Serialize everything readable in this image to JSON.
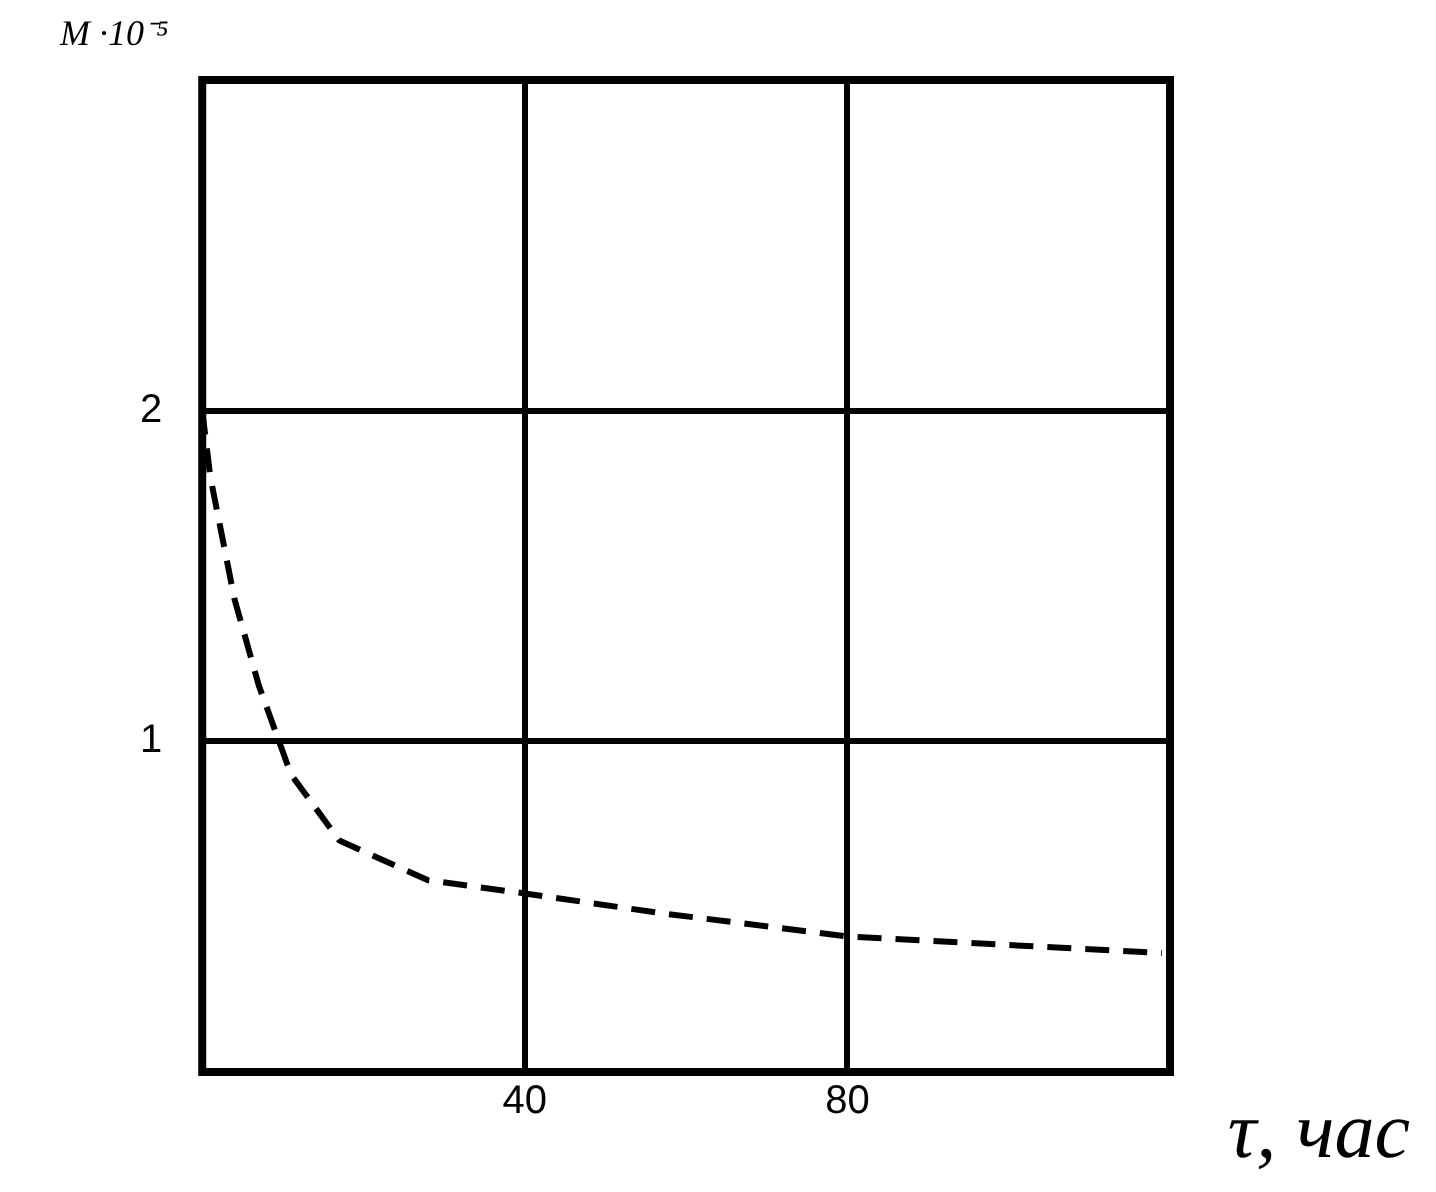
{
  "chart_data": {
    "type": "line",
    "xlabel": "τ, час",
    "ylabel": "M ·10⁻⁵",
    "x": [
      0,
      1,
      4,
      7,
      11,
      17,
      28,
      40,
      57,
      80,
      103,
      119
    ],
    "series": [
      {
        "color": "#000000",
        "values": [
          2.0,
          1.8,
          1.43,
          1.17,
          0.9,
          0.7,
          0.58,
          0.54,
          0.48,
          0.41,
          0.38,
          0.36
        ]
      }
    ],
    "xlim": [
      0,
      120
    ],
    "xticks": [
      40,
      80
    ],
    "ylim": [
      0,
      3
    ],
    "yticks": [
      1,
      2,
      {
        "value": 3,
        "label": null
      }
    ],
    "grid": true,
    "legend": false,
    "marker": "none",
    "line_style": "dashed"
  }
}
